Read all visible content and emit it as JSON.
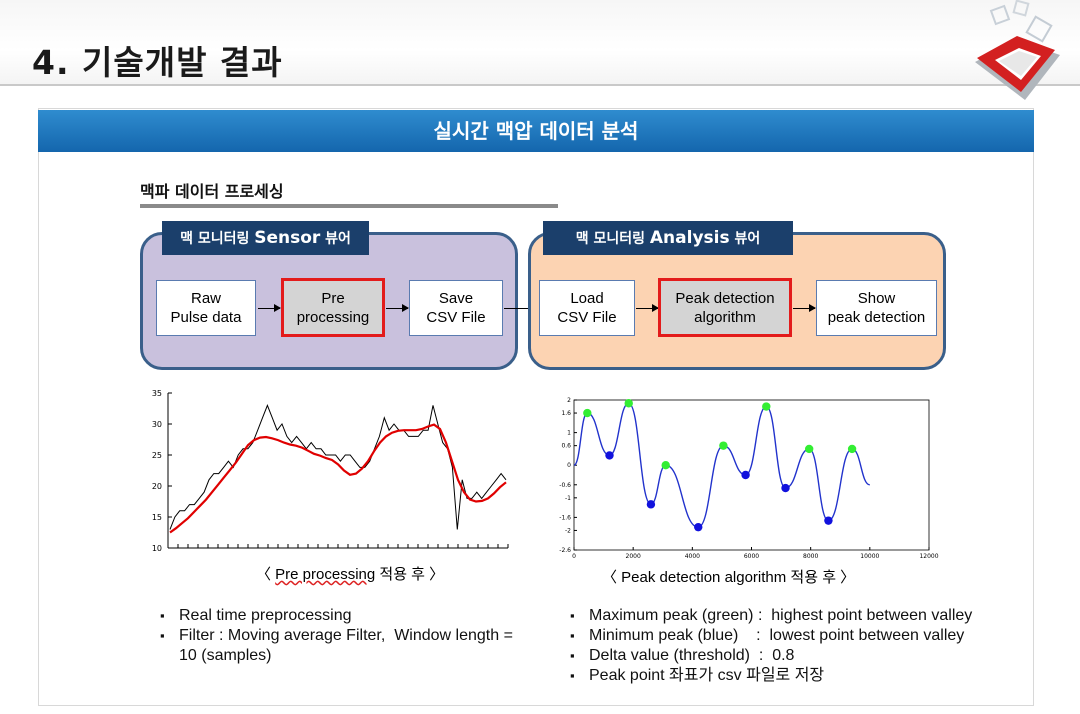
{
  "slide": {
    "title": "4. 기술개발 결과"
  },
  "banner": {
    "text": "실시간 맥압 데이터 분석"
  },
  "section": {
    "title": "맥파 데이터 프로세싱"
  },
  "sensor_viewer": {
    "tag_ko": "맥 모니터링",
    "tag_en": "Sensor",
    "tag_suffix": "뷰어",
    "steps": [
      {
        "label": "Raw\nPulse data"
      },
      {
        "label": "Pre\nprocessing",
        "highlighted": true
      },
      {
        "label": "Save\nCSV File"
      }
    ]
  },
  "analysis_viewer": {
    "tag_ko": "맥 모니터링",
    "tag_en": "Analysis",
    "tag_suffix": "뷰어",
    "steps": [
      {
        "label": "Load\nCSV File"
      },
      {
        "label": "Peak detection\nalgorithm",
        "highlighted": true
      },
      {
        "label": "Show\npeak detection"
      }
    ]
  },
  "colors": {
    "banner": "#1e76bf",
    "panel_border": "#3a5f8a",
    "sensor_panel": "#c9c1dd",
    "analysis_panel": "#fcd3b2",
    "tag": "#1b3f6b",
    "highlight": "#e31b1b",
    "raw_series": "#000000",
    "filtered_series": "#e00000",
    "peak_curve": "#2233cc",
    "max_peak": "#33ee33",
    "min_peak": "#1111dd"
  },
  "chart_data": [
    {
      "type": "line",
      "ylim": [
        10,
        35
      ],
      "yticks": [
        "35",
        "30",
        "25",
        "20",
        "15",
        "10"
      ],
      "series": [
        {
          "style": "raw",
          "values": [
            13,
            15,
            16,
            16,
            17,
            17,
            18,
            19,
            21,
            22,
            22,
            23,
            24,
            23,
            25,
            26,
            26,
            27,
            29,
            31,
            33,
            31,
            29,
            30,
            28,
            27,
            28,
            27,
            26,
            27,
            26,
            26,
            25,
            25,
            25,
            24,
            25,
            25,
            24,
            23,
            23,
            24,
            26,
            28,
            31,
            29,
            30,
            29,
            29,
            28,
            28,
            28,
            29,
            29,
            33,
            30,
            27,
            26,
            23,
            13,
            21,
            18,
            18,
            19,
            18,
            19,
            20,
            21,
            22,
            21
          ]
        },
        {
          "style": "filtered",
          "values": [
            12.5,
            13.2,
            14,
            14.8,
            15.8,
            16.8,
            17.8,
            19,
            20.2,
            21.4,
            22.6,
            23.8,
            25.2,
            26.6,
            27.4,
            27.8,
            27.9,
            27.7,
            27.4,
            27,
            26.7,
            26.5,
            26.2,
            25.7,
            25.2,
            24.9,
            24.5,
            24.2,
            23.5,
            22.5,
            21.8,
            22,
            22.8,
            24,
            25.6,
            27,
            28,
            28.6,
            28.9,
            29,
            29,
            29,
            29.2,
            29.6,
            29.9,
            29.2,
            27,
            24,
            21,
            19,
            17.8,
            17.5,
            17.6,
            18,
            18.8,
            19.8,
            20.6
          ]
        }
      ],
      "caption_parts": [
        "〈 ",
        "Pre processing",
        " 적용 후 〉"
      ]
    },
    {
      "type": "line",
      "ylim": [
        -2.6,
        2
      ],
      "xlim": [
        0,
        12000
      ],
      "yticks": [
        "2",
        "1.6",
        "1",
        "0.6",
        "0",
        "-0.6",
        "-1",
        "-1.6",
        "-2",
        "-2.6"
      ],
      "xticks": [
        "0",
        "2000",
        "4000",
        "6000",
        "8000",
        "10000",
        "12000"
      ],
      "series": [
        {
          "name": "Maximum peak",
          "points": [
            [
              450,
              1.6
            ],
            [
              1850,
              1.9
            ],
            [
              3100,
              0
            ],
            [
              5050,
              0.6
            ],
            [
              6500,
              1.8
            ],
            [
              7950,
              0.5
            ],
            [
              9400,
              0.5
            ]
          ]
        },
        {
          "name": "Minimum peak",
          "points": [
            [
              1200,
              0.3
            ],
            [
              2600,
              -1.2
            ],
            [
              4200,
              -1.9
            ],
            [
              5800,
              -0.3
            ],
            [
              7150,
              -0.7
            ],
            [
              8600,
              -1.7
            ]
          ]
        }
      ],
      "curve": [
        [
          0,
          0
        ],
        [
          450,
          1.6
        ],
        [
          1200,
          0.3
        ],
        [
          1850,
          1.9
        ],
        [
          2600,
          -1.2
        ],
        [
          3100,
          0
        ],
        [
          4200,
          -1.9
        ],
        [
          5050,
          0.6
        ],
        [
          5800,
          -0.3
        ],
        [
          6500,
          1.8
        ],
        [
          7150,
          -0.7
        ],
        [
          7950,
          0.5
        ],
        [
          8600,
          -1.7
        ],
        [
          9400,
          0.5
        ],
        [
          10000,
          -0.6
        ]
      ],
      "caption": "〈 Peak detection algorithm 적용 후 〉"
    }
  ],
  "notes_left": [
    "Real time preprocessing",
    "Filter : Moving average Filter,  Window length =\n10 (samples)"
  ],
  "notes_right": [
    "Maximum peak (green) :  highest point between valley",
    "Minimum peak (blue)    :  lowest point between valley",
    "Delta value (threshold)  :  0.8",
    "Peak point 좌표가 csv 파일로 저장"
  ]
}
